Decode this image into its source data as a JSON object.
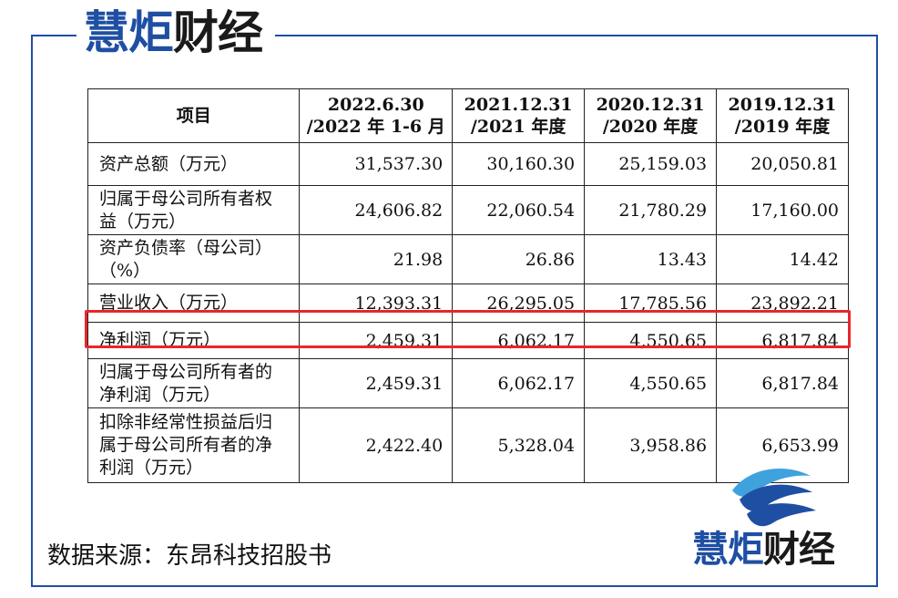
{
  "brand": {
    "part1": "慧炬",
    "part2": "财经"
  },
  "table": {
    "headers": [
      {
        "line1": "项目",
        "line2": ""
      },
      {
        "line1": "2022.6.30",
        "line2": "/2022 年 1-6 月"
      },
      {
        "line1": "2021.12.31",
        "line2": "/2021 年度"
      },
      {
        "line1": "2020.12.31",
        "line2": "/2020 年度"
      },
      {
        "line1": "2019.12.31",
        "line2": "/2019 年度"
      }
    ],
    "rows": [
      {
        "label": [
          "资产总额（万元）"
        ],
        "values": [
          "31,537.30",
          "30,160.30",
          "25,159.03",
          "20,050.81"
        ]
      },
      {
        "label": [
          "归属于母公司所有者权",
          "益（万元）"
        ],
        "values": [
          "24,606.82",
          "22,060.54",
          "21,780.29",
          "17,160.00"
        ]
      },
      {
        "label": [
          "资产负债率（母公司）",
          "（%）"
        ],
        "values": [
          "21.98",
          "26.86",
          "13.43",
          "14.42"
        ]
      },
      {
        "label": [
          "营业收入（万元）"
        ],
        "values": [
          "12,393.31",
          "26,295.05",
          "17,785.56",
          "23,892.21"
        ]
      },
      {
        "label": [
          "净利润（万元）"
        ],
        "values": [
          "2,459.31",
          "6,062.17",
          "4,550.65",
          "6,817.84"
        ]
      },
      {
        "label": [
          "归属于母公司所有者的",
          "净利润（万元）"
        ],
        "values": [
          "2,459.31",
          "6,062.17",
          "4,550.65",
          "6,817.84"
        ]
      },
      {
        "label": [
          "扣除非经常性损益后归",
          "属于母公司所有者的净",
          "利润（万元）"
        ],
        "values": [
          "2,422.40",
          "5,328.04",
          "3,958.86",
          "6,653.99"
        ]
      }
    ]
  },
  "source_note": "数据来源：东昂科技招股书",
  "colors": {
    "brand_blue": "#1f4fa3",
    "highlight_red": "#e8262c",
    "logo_light_blue": "#3fa2dc"
  },
  "icons": {
    "logo": "wave-logo-icon"
  }
}
